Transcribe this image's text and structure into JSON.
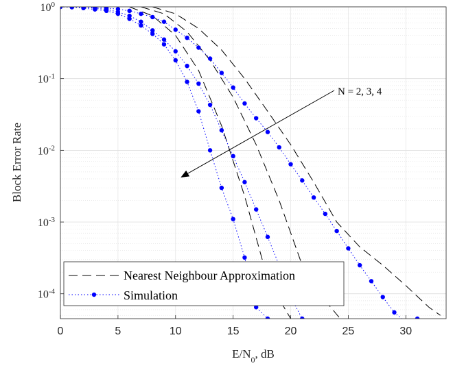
{
  "chart_data": {
    "type": "line",
    "xlabel_main": "E/N",
    "xlabel_sub": "0",
    "xlabel_tail": ", dB",
    "ylabel": "Block Error Rate",
    "xlim": [
      0,
      33.5
    ],
    "ylim": [
      4.5e-05,
      1
    ],
    "yscale": "log",
    "grid": true,
    "x_ticks": [
      "0",
      "5",
      "10",
      "15",
      "20",
      "25",
      "30"
    ],
    "y_ticks": [
      {
        "base": "10",
        "exp": "0"
      },
      {
        "base": "10",
        "exp": "-1"
      },
      {
        "base": "10",
        "exp": "-2"
      },
      {
        "base": "10",
        "exp": "-3"
      },
      {
        "base": "10",
        "exp": "-4"
      }
    ],
    "legend": {
      "position": "bottom-left",
      "entries": [
        {
          "label": "Nearest Neighbour Approximation",
          "style": "dashed",
          "color": "#000000"
        },
        {
          "label": "Simulation",
          "style": "dotted-markers",
          "color": "#0000ff"
        }
      ]
    },
    "annotation": {
      "text": "N = 2, 3, 4"
    },
    "series": [
      {
        "group": "N=2",
        "kind": "approximation",
        "x": [
          6,
          8,
          10,
          12,
          14,
          16,
          18,
          20
        ],
        "y": [
          1.0,
          0.75,
          0.4,
          0.13,
          0.022,
          0.0023,
          0.00016,
          4.5e-05
        ]
      },
      {
        "group": "N=2",
        "kind": "simulation",
        "x": [
          0,
          1,
          2,
          3,
          4,
          5,
          6,
          7,
          8,
          9,
          10,
          11,
          12,
          13,
          14,
          15,
          16,
          17,
          18
        ],
        "y": [
          1.0,
          0.99,
          0.96,
          0.92,
          0.88,
          0.8,
          0.68,
          0.55,
          0.42,
          0.3,
          0.18,
          0.09,
          0.035,
          0.01,
          0.003,
          0.0011,
          0.00032,
          6.5e-05,
          4.5e-05
        ]
      },
      {
        "group": "N=3",
        "kind": "approximation",
        "x": [
          7,
          9,
          11,
          13,
          15,
          17,
          19,
          21,
          23,
          24.3
        ],
        "y": [
          1.0,
          0.8,
          0.45,
          0.18,
          0.055,
          0.012,
          0.002,
          0.00025,
          8e-05,
          4.5e-05
        ]
      },
      {
        "group": "N=3",
        "kind": "simulation",
        "x": [
          0,
          1,
          2,
          3,
          4,
          5,
          6,
          7,
          8,
          9,
          10,
          11,
          12,
          13,
          14,
          15,
          16,
          17,
          18,
          19,
          20,
          21
        ],
        "y": [
          1.0,
          0.99,
          0.98,
          0.96,
          0.92,
          0.85,
          0.75,
          0.62,
          0.47,
          0.35,
          0.24,
          0.15,
          0.085,
          0.043,
          0.019,
          0.0083,
          0.0036,
          0.0015,
          0.00062,
          0.00025,
          9e-05,
          4.5e-05
        ]
      },
      {
        "group": "N=4",
        "kind": "approximation",
        "x": [
          8,
          10,
          12,
          14,
          16,
          18,
          20,
          22,
          24,
          26,
          28,
          30,
          32,
          33
        ],
        "y": [
          1.0,
          0.8,
          0.5,
          0.25,
          0.1,
          0.035,
          0.012,
          0.0036,
          0.001,
          0.00045,
          0.00025,
          0.00013,
          6.5e-05,
          5e-05
        ]
      },
      {
        "group": "N=4",
        "kind": "simulation",
        "x": [
          0,
          1,
          2,
          3,
          4,
          5,
          6,
          7,
          8,
          9,
          10,
          11,
          12,
          13,
          14,
          15,
          16,
          17,
          18,
          19,
          20,
          21,
          22,
          23,
          24,
          25,
          26,
          27,
          28,
          29,
          30,
          31
        ],
        "y": [
          1.0,
          0.99,
          0.99,
          0.98,
          0.96,
          0.93,
          0.88,
          0.8,
          0.72,
          0.62,
          0.48,
          0.37,
          0.27,
          0.19,
          0.12,
          0.075,
          0.045,
          0.028,
          0.018,
          0.011,
          0.0064,
          0.0038,
          0.0022,
          0.0013,
          0.00075,
          0.00043,
          0.00025,
          0.00015,
          9e-05,
          5.5e-05,
          4e-05,
          4.5e-05
        ]
      }
    ]
  }
}
